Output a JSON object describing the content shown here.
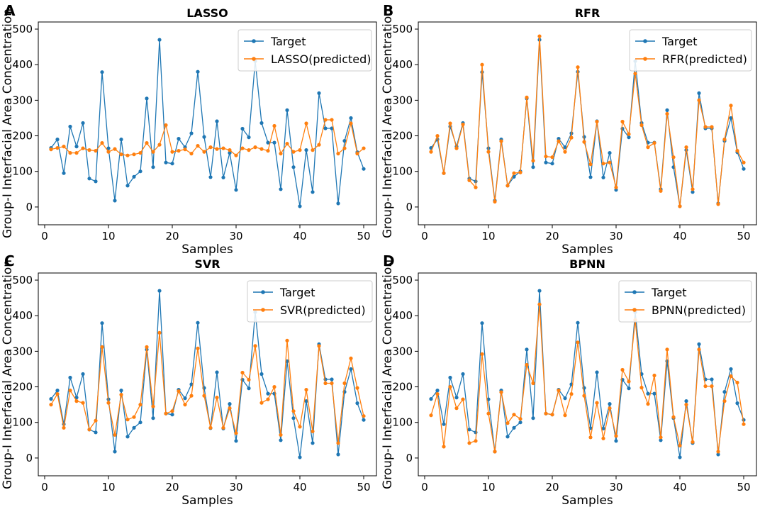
{
  "figure": {
    "colors": {
      "target": "#1f77b4",
      "predicted": "#ff7f0e",
      "target_alt": "#1b86c3"
    }
  },
  "chart_data": [
    {
      "type": "line",
      "panel": "A",
      "title": "LASSO",
      "xlabel": "Samples",
      "ylabel": "Group-I Interfacial Area Concentration",
      "xlim": [
        -1,
        52
      ],
      "ylim": [
        -50,
        520
      ],
      "xticks": [
        0,
        10,
        20,
        30,
        40,
        50
      ],
      "yticks": [
        0,
        100,
        200,
        300,
        400,
        500
      ],
      "legend_position": "top-right",
      "x": [
        1,
        2,
        3,
        4,
        5,
        6,
        7,
        8,
        9,
        10,
        11,
        12,
        13,
        14,
        15,
        16,
        17,
        18,
        19,
        20,
        21,
        22,
        23,
        24,
        25,
        26,
        27,
        28,
        29,
        30,
        31,
        32,
        33,
        34,
        35,
        36,
        37,
        38,
        39,
        40,
        41,
        42,
        43,
        44,
        45,
        46,
        47,
        48,
        49,
        50
      ],
      "series": [
        {
          "name": "Target",
          "values": [
            166,
            190,
            95,
            226,
            170,
            236,
            80,
            72,
            379,
            165,
            18,
            190,
            60,
            85,
            100,
            305,
            112,
            470,
            125,
            122,
            192,
            168,
            207,
            380,
            197,
            84,
            241,
            83,
            152,
            48,
            220,
            196,
            410,
            236,
            181,
            181,
            50,
            272,
            112,
            2,
            160,
            42,
            320,
            221,
            221,
            10,
            186,
            250,
            154,
            107
          ]
        },
        {
          "name": "LASSO(predicted)",
          "values": [
            162,
            166,
            170,
            152,
            152,
            165,
            160,
            158,
            180,
            155,
            163,
            148,
            145,
            148,
            152,
            180,
            155,
            175,
            230,
            155,
            158,
            162,
            150,
            172,
            155,
            168,
            163,
            165,
            160,
            145,
            165,
            160,
            168,
            163,
            158,
            228,
            150,
            178,
            155,
            160,
            235,
            160,
            175,
            245,
            245,
            150,
            165,
            235,
            150,
            165
          ]
        }
      ]
    },
    {
      "type": "line",
      "panel": "B",
      "title": "RFR",
      "xlabel": "Samples",
      "ylabel": "Group-I Interfacial Area Concentration",
      "xlim": [
        -1,
        52
      ],
      "ylim": [
        -50,
        520
      ],
      "xticks": [
        0,
        10,
        20,
        30,
        40,
        50
      ],
      "yticks": [
        0,
        100,
        200,
        300,
        400,
        500
      ],
      "legend_position": "top-right",
      "x": [
        1,
        2,
        3,
        4,
        5,
        6,
        7,
        8,
        9,
        10,
        11,
        12,
        13,
        14,
        15,
        16,
        17,
        18,
        19,
        20,
        21,
        22,
        23,
        24,
        25,
        26,
        27,
        28,
        29,
        30,
        31,
        32,
        33,
        34,
        35,
        36,
        37,
        38,
        39,
        40,
        41,
        42,
        43,
        44,
        45,
        46,
        47,
        48,
        49,
        50
      ],
      "series": [
        {
          "name": "Target",
          "values": [
            166,
            190,
            95,
            226,
            170,
            236,
            80,
            72,
            379,
            165,
            18,
            190,
            60,
            85,
            100,
            305,
            112,
            470,
            125,
            122,
            192,
            168,
            207,
            380,
            197,
            84,
            241,
            83,
            152,
            48,
            220,
            196,
            410,
            236,
            181,
            181,
            50,
            272,
            112,
            2,
            160,
            42,
            320,
            221,
            221,
            10,
            186,
            250,
            154,
            107
          ]
        },
        {
          "name": "RFR(predicted)",
          "values": [
            155,
            200,
            95,
            235,
            165,
            232,
            75,
            55,
            400,
            155,
            15,
            185,
            60,
            95,
            97,
            308,
            130,
            480,
            142,
            140,
            185,
            155,
            195,
            393,
            183,
            120,
            240,
            122,
            125,
            55,
            240,
            205,
            375,
            230,
            168,
            180,
            45,
            262,
            140,
            2,
            168,
            50,
            300,
            225,
            225,
            8,
            190,
            285,
            158,
            125
          ]
        }
      ]
    },
    {
      "type": "line",
      "panel": "C",
      "title": "SVR",
      "xlabel": "Samples",
      "ylabel": "Group-I Interfacial Area Concentration",
      "xlim": [
        -1,
        52
      ],
      "ylim": [
        -50,
        520
      ],
      "xticks": [
        0,
        10,
        20,
        30,
        40,
        50
      ],
      "yticks": [
        0,
        100,
        200,
        300,
        400,
        500
      ],
      "legend_position": "top-right",
      "x": [
        1,
        2,
        3,
        4,
        5,
        6,
        7,
        8,
        9,
        10,
        11,
        12,
        13,
        14,
        15,
        16,
        17,
        18,
        19,
        20,
        21,
        22,
        23,
        24,
        25,
        26,
        27,
        28,
        29,
        30,
        31,
        32,
        33,
        34,
        35,
        36,
        37,
        38,
        39,
        40,
        41,
        42,
        43,
        44,
        45,
        46,
        47,
        48,
        49,
        50
      ],
      "series": [
        {
          "name": "Target",
          "values": [
            166,
            190,
            95,
            226,
            170,
            236,
            80,
            72,
            379,
            165,
            18,
            190,
            60,
            85,
            100,
            305,
            112,
            470,
            125,
            122,
            192,
            168,
            207,
            380,
            197,
            84,
            241,
            83,
            152,
            48,
            220,
            196,
            410,
            236,
            181,
            181,
            50,
            272,
            112,
            2,
            160,
            42,
            320,
            221,
            221,
            10,
            186,
            250,
            154,
            107
          ]
        },
        {
          "name": "SVR(predicted)",
          "values": [
            150,
            180,
            85,
            190,
            160,
            155,
            80,
            105,
            312,
            155,
            65,
            178,
            108,
            115,
            150,
            312,
            145,
            352,
            125,
            132,
            188,
            150,
            175,
            308,
            175,
            85,
            170,
            85,
            140,
            70,
            240,
            220,
            315,
            155,
            165,
            200,
            65,
            330,
            132,
            88,
            192,
            75,
            315,
            210,
            210,
            42,
            210,
            280,
            197,
            118
          ]
        }
      ]
    },
    {
      "type": "line",
      "panel": "D",
      "title": "BPNN",
      "xlabel": "Samples",
      "ylabel": "Group-I Interfacial Area Concentration",
      "xlim": [
        -1,
        52
      ],
      "ylim": [
        -50,
        520
      ],
      "xticks": [
        0,
        10,
        20,
        30,
        40,
        50
      ],
      "yticks": [
        0,
        100,
        200,
        300,
        400,
        500
      ],
      "legend_position": "top-right",
      "x": [
        1,
        2,
        3,
        4,
        5,
        6,
        7,
        8,
        9,
        10,
        11,
        12,
        13,
        14,
        15,
        16,
        17,
        18,
        19,
        20,
        21,
        22,
        23,
        24,
        25,
        26,
        27,
        28,
        29,
        30,
        31,
        32,
        33,
        34,
        35,
        36,
        37,
        38,
        39,
        40,
        41,
        42,
        43,
        44,
        45,
        46,
        47,
        48,
        49,
        50
      ],
      "series": [
        {
          "name": "Target",
          "values": [
            166,
            190,
            95,
            226,
            170,
            236,
            80,
            72,
            379,
            165,
            18,
            190,
            60,
            85,
            100,
            305,
            112,
            470,
            125,
            122,
            192,
            168,
            207,
            380,
            197,
            84,
            241,
            83,
            152,
            48,
            220,
            196,
            410,
            236,
            181,
            181,
            50,
            272,
            112,
            2,
            160,
            42,
            320,
            221,
            221,
            10,
            186,
            250,
            154,
            107
          ]
        },
        {
          "name": "BPNN(predicted)",
          "values": [
            120,
            180,
            32,
            200,
            140,
            165,
            42,
            48,
            292,
            125,
            18,
            185,
            98,
            122,
            110,
            262,
            210,
            432,
            125,
            122,
            190,
            120,
            180,
            325,
            175,
            58,
            155,
            55,
            140,
            62,
            248,
            215,
            388,
            198,
            152,
            232,
            58,
            305,
            115,
            35,
            150,
            45,
            305,
            202,
            202,
            18,
            160,
            230,
            212,
            95
          ]
        }
      ]
    }
  ]
}
